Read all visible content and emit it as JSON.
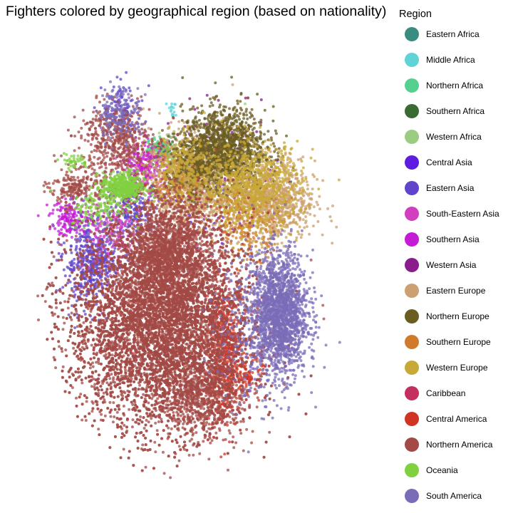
{
  "chart_data": {
    "type": "scatter",
    "title": "Fighters colored by geographical region (based on nationality)",
    "xlabel": "",
    "ylabel": "",
    "grid": false,
    "axes_visible": false,
    "legend": {
      "title": "Region",
      "placement": "right"
    },
    "series": [
      {
        "name": "Eastern Africa",
        "color": "#3b8c80",
        "clusters": [
          {
            "x": 0.392,
            "y": 0.756,
            "sx": 0.012,
            "sy": 0.01,
            "n": 25
          }
        ]
      },
      {
        "name": "Middle Africa",
        "color": "#5fd3d6",
        "clusters": [
          {
            "x": 0.413,
            "y": 0.846,
            "sx": 0.01,
            "sy": 0.01,
            "n": 15
          }
        ]
      },
      {
        "name": "Northern Africa",
        "color": "#56d08e",
        "clusters": [
          {
            "x": 0.38,
            "y": 0.76,
            "sx": 0.02,
            "sy": 0.012,
            "n": 90
          }
        ]
      },
      {
        "name": "Southern Africa",
        "color": "#3a6b32",
        "clusters": [
          {
            "x": 0.38,
            "y": 0.75,
            "sx": 0.02,
            "sy": 0.02,
            "n": 20
          }
        ]
      },
      {
        "name": "Western Africa",
        "color": "#9ccc82",
        "clusters": [
          {
            "x": 0.48,
            "y": 0.7,
            "sx": 0.1,
            "sy": 0.08,
            "n": 30
          }
        ]
      },
      {
        "name": "Central Asia",
        "color": "#5d1ce0",
        "clusters": [
          {
            "x": 0.55,
            "y": 0.66,
            "sx": 0.08,
            "sy": 0.06,
            "n": 60
          }
        ]
      },
      {
        "name": "Eastern Asia",
        "color": "#6244cc",
        "clusters": [
          {
            "x": 0.18,
            "y": 0.5,
            "sx": 0.04,
            "sy": 0.05,
            "n": 500
          },
          {
            "x": 0.3,
            "y": 0.62,
            "sx": 0.04,
            "sy": 0.03,
            "n": 220
          },
          {
            "x": 0.27,
            "y": 0.85,
            "sx": 0.03,
            "sy": 0.03,
            "n": 100
          }
        ]
      },
      {
        "name": "South-Eastern Asia",
        "color": "#d23fbe",
        "clusters": [
          {
            "x": 0.34,
            "y": 0.71,
            "sx": 0.03,
            "sy": 0.03,
            "n": 220
          },
          {
            "x": 0.24,
            "y": 0.56,
            "sx": 0.04,
            "sy": 0.04,
            "n": 150
          }
        ]
      },
      {
        "name": "Southern Asia",
        "color": "#c41cd6",
        "clusters": [
          {
            "x": 0.12,
            "y": 0.6,
            "sx": 0.03,
            "sy": 0.02,
            "n": 150
          },
          {
            "x": 0.33,
            "y": 0.73,
            "sx": 0.03,
            "sy": 0.02,
            "n": 80
          }
        ]
      },
      {
        "name": "Western Asia",
        "color": "#8a1c8c",
        "clusters": [
          {
            "x": 0.55,
            "y": 0.7,
            "sx": 0.08,
            "sy": 0.07,
            "n": 120
          }
        ]
      },
      {
        "name": "Eastern Europe",
        "color": "#cca072",
        "clusters": [
          {
            "x": 0.47,
            "y": 0.69,
            "sx": 0.06,
            "sy": 0.05,
            "n": 1100
          },
          {
            "x": 0.7,
            "y": 0.64,
            "sx": 0.06,
            "sy": 0.045,
            "n": 800
          }
        ]
      },
      {
        "name": "Northern Europe",
        "color": "#6b5c22",
        "clusters": [
          {
            "x": 0.56,
            "y": 0.76,
            "sx": 0.06,
            "sy": 0.045,
            "n": 1300
          },
          {
            "x": 0.47,
            "y": 0.71,
            "sx": 0.04,
            "sy": 0.04,
            "n": 300
          }
        ]
      },
      {
        "name": "Southern Europe",
        "color": "#d07a2c",
        "clusters": [
          {
            "x": 0.63,
            "y": 0.59,
            "sx": 0.05,
            "sy": 0.04,
            "n": 250
          },
          {
            "x": 0.42,
            "y": 0.67,
            "sx": 0.04,
            "sy": 0.03,
            "n": 80
          }
        ]
      },
      {
        "name": "Western Europe",
        "color": "#c8a837",
        "clusters": [
          {
            "x": 0.64,
            "y": 0.67,
            "sx": 0.07,
            "sy": 0.05,
            "n": 900
          },
          {
            "x": 0.44,
            "y": 0.71,
            "sx": 0.05,
            "sy": 0.04,
            "n": 300
          }
        ]
      },
      {
        "name": "Caribbean",
        "color": "#c3305f",
        "clusters": [
          {
            "x": 0.44,
            "y": 0.4,
            "sx": 0.1,
            "sy": 0.1,
            "n": 30
          }
        ]
      },
      {
        "name": "Central America",
        "color": "#d03424",
        "clusters": [
          {
            "x": 0.56,
            "y": 0.29,
            "sx": 0.025,
            "sy": 0.08,
            "n": 500
          },
          {
            "x": 0.63,
            "y": 0.24,
            "sx": 0.02,
            "sy": 0.02,
            "n": 100
          }
        ]
      },
      {
        "name": "Northern America",
        "color": "#a34a46",
        "clusters": [
          {
            "x": 0.38,
            "y": 0.36,
            "sx": 0.13,
            "sy": 0.12,
            "n": 8500
          },
          {
            "x": 0.4,
            "y": 0.52,
            "sx": 0.06,
            "sy": 0.06,
            "n": 1400
          },
          {
            "x": 0.25,
            "y": 0.78,
            "sx": 0.05,
            "sy": 0.04,
            "n": 500
          },
          {
            "x": 0.14,
            "y": 0.67,
            "sx": 0.04,
            "sy": 0.02,
            "n": 220
          },
          {
            "x": 0.5,
            "y": 0.2,
            "sx": 0.06,
            "sy": 0.05,
            "n": 700
          }
        ]
      },
      {
        "name": "Oceania",
        "color": "#80d040",
        "clusters": [
          {
            "x": 0.27,
            "y": 0.67,
            "sx": 0.03,
            "sy": 0.017,
            "n": 450
          },
          {
            "x": 0.2,
            "y": 0.62,
            "sx": 0.04,
            "sy": 0.02,
            "n": 100
          },
          {
            "x": 0.13,
            "y": 0.73,
            "sx": 0.02,
            "sy": 0.008,
            "n": 40
          }
        ]
      },
      {
        "name": "South America",
        "color": "#7b6cb8",
        "clusters": [
          {
            "x": 0.72,
            "y": 0.38,
            "sx": 0.04,
            "sy": 0.07,
            "n": 1800
          },
          {
            "x": 0.26,
            "y": 0.84,
            "sx": 0.03,
            "sy": 0.03,
            "n": 160
          },
          {
            "x": 0.62,
            "y": 0.36,
            "sx": 0.05,
            "sy": 0.1,
            "n": 200
          }
        ]
      }
    ]
  }
}
